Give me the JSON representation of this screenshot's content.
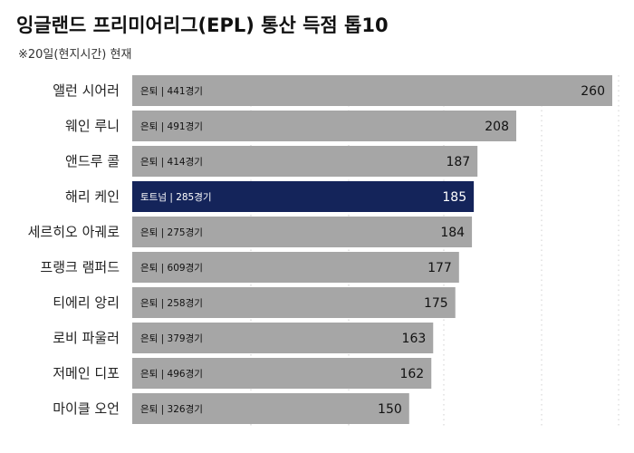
{
  "title": "잉글랜드 프리미어리그(EPL) 통산 득점 톱10",
  "subtitle": "※20일(현지시간) 현재",
  "colors": {
    "bar": "#a6a6a6",
    "highlight": "#14245a",
    "grid": "#cfcfcf"
  },
  "chart_data": {
    "type": "bar",
    "orientation": "horizontal",
    "title": "잉글랜드 프리미어리그(EPL) 통산 득점 톱10",
    "subtitle": "※20일(현지시간) 현재",
    "xlim": [
      0,
      260
    ],
    "grid": true,
    "highlight_index": 3,
    "categories": [
      "앨런 시어러",
      "웨인 루니",
      "앤드루 콜",
      "해리 케인",
      "세르히오 아궤로",
      "프랭크 램퍼드",
      "티에리 앙리",
      "로비 파울러",
      "저메인 디포",
      "마이클 오언"
    ],
    "notes": [
      "은퇴 | 441경기",
      "은퇴 | 491경기",
      "은퇴 | 414경기",
      "토트넘 | 285경기",
      "은퇴 | 275경기",
      "은퇴 | 609경기",
      "은퇴 | 258경기",
      "은퇴 | 379경기",
      "은퇴 | 496경기",
      "은퇴 | 326경기"
    ],
    "values": [
      260,
      208,
      187,
      185,
      184,
      177,
      175,
      163,
      162,
      150
    ]
  }
}
